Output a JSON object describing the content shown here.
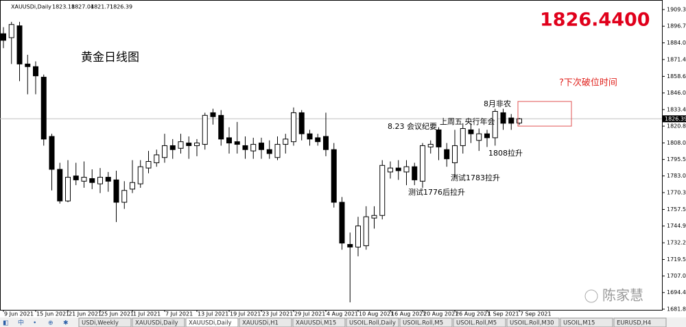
{
  "chart_data": {
    "type": "candlestick",
    "symbol": "XAUUSDi,Daily",
    "title": "黄金日线图",
    "price_banner": "1826.4400",
    "annotations": [
      "?下次破位时间",
      "8月非农",
      "8.23 会议纪要",
      "上周五 央行年会",
      "1808拉升",
      "测试1783拉升",
      "测试1776后拉升"
    ],
    "categories": [
      "9 Jun 2021",
      null,
      null,
      null,
      "15 Jun 2021",
      null,
      null,
      null,
      "21 Jun 2021",
      null,
      null,
      null,
      "25 Jun 2021",
      null,
      null,
      null,
      "1 Jul 2021",
      null,
      null,
      null,
      "7 Jul 2021",
      null,
      null,
      null,
      "13 Jul 2021",
      null,
      null,
      null,
      "19 Jul 2021",
      null,
      null,
      null,
      "23 Jul 2021",
      null,
      null,
      null,
      "29 Jul 2021",
      null,
      null,
      null,
      "4 Aug 2021",
      null,
      null,
      null,
      "10 Aug 2021",
      null,
      null,
      null,
      "16 Aug 2021",
      null,
      null,
      null,
      "20 Aug 2021",
      null,
      null,
      null,
      "26 Aug 2021",
      null,
      null,
      null,
      "1 Sep 2021",
      null,
      null,
      null,
      "7 Sep 2021"
    ],
    "open": [
      1891,
      1888,
      1897,
      1868,
      1866,
      1858,
      1813,
      1788,
      1764,
      1783,
      1779,
      1781,
      1777,
      1782,
      1780,
      1763,
      1773,
      1777,
      1789,
      1793,
      1797,
      1806,
      1804,
      1808,
      1806,
      1807,
      1831,
      1829,
      1812,
      1809,
      1806,
      1802,
      1808,
      1803,
      1797,
      1807,
      1809,
      1831,
      1815,
      1812,
      1813,
      1803,
      1763,
      1731,
      1729,
      1730,
      1751,
      1753,
      1786,
      1789,
      1786,
      1790,
      1779,
      1805,
      1818,
      1803,
      1793,
      1806,
      1818,
      1810,
      1815,
      1812,
      1831,
      1827,
      1823.18
    ],
    "high": [
      1896,
      1900,
      1900,
      1875,
      1870,
      1860,
      1815,
      1793,
      1795,
      1793,
      1794,
      1788,
      1789,
      1786,
      1787,
      1779,
      1795,
      1795,
      1802,
      1803,
      1815,
      1811,
      1815,
      1813,
      1811,
      1831,
      1834,
      1833,
      1820,
      1824,
      1813,
      1812,
      1812,
      1810,
      1813,
      1815,
      1835,
      1833,
      1818,
      1815,
      1831,
      1808,
      1767,
      1740,
      1752,
      1760,
      1760,
      1795,
      1794,
      1795,
      1795,
      1793,
      1808,
      1810,
      1820,
      1808,
      1818,
      1823,
      1823,
      1819,
      1818,
      1834,
      1834,
      1830,
      1827.04
    ],
    "low": [
      1880,
      1868,
      1855,
      1845,
      1845,
      1806,
      1772,
      1762,
      1763,
      1776,
      1774,
      1773,
      1770,
      1771,
      1748,
      1758,
      1770,
      1774,
      1785,
      1790,
      1793,
      1796,
      1800,
      1796,
      1798,
      1803,
      1822,
      1806,
      1800,
      1800,
      1796,
      1796,
      1796,
      1796,
      1795,
      1800,
      1806,
      1810,
      1806,
      1806,
      1798,
      1759,
      1727,
      1687,
      1722,
      1727,
      1743,
      1750,
      1781,
      1780,
      1776,
      1776,
      1774,
      1800,
      1795,
      1790,
      1782,
      1800,
      1808,
      1802,
      1805,
      1806,
      1818,
      1818,
      1821.71
    ],
    "close": [
      1886,
      1898,
      1868,
      1866,
      1859,
      1811,
      1788,
      1764,
      1782,
      1780,
      1782,
      1778,
      1782,
      1779,
      1763,
      1772,
      1778,
      1790,
      1794,
      1799,
      1806,
      1803,
      1809,
      1806,
      1808,
      1829,
      1828,
      1811,
      1808,
      1807,
      1803,
      1807,
      1803,
      1800,
      1807,
      1811,
      1831,
      1815,
      1811,
      1809,
      1803,
      1763,
      1732,
      1729,
      1745,
      1752,
      1753,
      1791,
      1789,
      1787,
      1790,
      1780,
      1806,
      1807,
      1805,
      1796,
      1806,
      1819,
      1815,
      1815,
      1812,
      1832,
      1823,
      1823,
      1826.39
    ],
    "up_color": "#ffffff",
    "down_color": "#000000",
    "current_price": 1826.39,
    "ylim": [
      1681.3,
      1916.6
    ],
    "yticks": [
      1909.35,
      {
        "value": 1896.7,
        "label": "1896.70"
      },
      1884.05,
      {
        "value": 1871.4,
        "label": "1871.40"
      },
      {
        "value": 1858.6,
        "label": "1858.60"
      },
      {
        "value": 1846,
        "label": "1846.00"
      },
      {
        "value": 1833.4,
        "label": "1833.40"
      },
      {
        "value": 1820.8,
        "label": "1820.80"
      },
      1808.05,
      {
        "value": 1795.5,
        "label": "1795.50"
      },
      {
        "value": 1783,
        "label": "1783.00"
      },
      1770.35,
      1757.55,
      1744.95,
      1732.25,
      1719.55,
      {
        "value": 1707,
        "label": "1707.00"
      },
      1694.45,
      1681.85
    ]
  },
  "watermark": "陈家慧",
  "tabs": [
    "USDi,Weekly",
    "XAUUSDi,Daily",
    "XAUUSDi,Daily",
    "XAUUSDi,H1",
    "XAUUSDi,M15",
    "USOIL.Roll,Daily",
    "USOIL.Roll,M5",
    "USOIL.Roll,M5",
    "USOIL.Roll,M30",
    "USOIL,M15",
    "EURUSD,H4"
  ]
}
